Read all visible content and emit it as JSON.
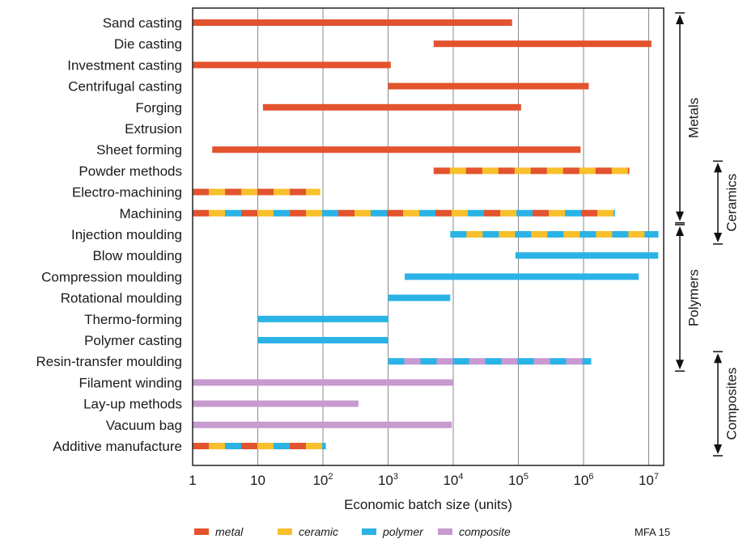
{
  "chart_data": {
    "type": "bar",
    "orientation": "horizontal",
    "x_scale": "log",
    "xlim": [
      1,
      15000000
    ],
    "xlabel": "Economic batch size (units)",
    "x_ticks": [
      {
        "value": 1,
        "base": "1",
        "exp": ""
      },
      {
        "value": 10,
        "base": "10",
        "exp": ""
      },
      {
        "value": 100,
        "base": "10",
        "exp": "2"
      },
      {
        "value": 1000,
        "base": "10",
        "exp": "3"
      },
      {
        "value": 10000,
        "base": "10",
        "exp": "4"
      },
      {
        "value": 100000,
        "base": "10",
        "exp": "5"
      },
      {
        "value": 1000000,
        "base": "10",
        "exp": "6"
      },
      {
        "value": 10000000,
        "base": "10",
        "exp": "7"
      }
    ],
    "grid": "vertical",
    "colors": {
      "metal": "#e2532e",
      "ceramic": "#f7c02c",
      "polymer": "#2bb3e6",
      "composite": "#c79ad0"
    },
    "categories": [
      {
        "label": "Sand casting",
        "min": 1,
        "max": 80000,
        "materials": [
          "metal"
        ]
      },
      {
        "label": "Die casting",
        "min": 5000,
        "max": 11000000,
        "materials": [
          "metal"
        ]
      },
      {
        "label": "Investment casting",
        "min": 1,
        "max": 1100,
        "materials": [
          "metal"
        ]
      },
      {
        "label": "Centrifugal casting",
        "min": 1000,
        "max": 1200000,
        "materials": [
          "metal"
        ]
      },
      {
        "label": "Forging",
        "min": 12,
        "max": 110000,
        "materials": [
          "metal"
        ]
      },
      {
        "label": "Extrusion",
        "min": null,
        "max": null,
        "materials": []
      },
      {
        "label": "Sheet forming",
        "min": 2,
        "max": 900000,
        "materials": [
          "metal"
        ]
      },
      {
        "label": "Powder methods",
        "min": 5000,
        "max": 5000000,
        "materials": [
          "metal",
          "ceramic"
        ]
      },
      {
        "label": "Electro-machining",
        "min": 1,
        "max": 90,
        "materials": [
          "metal",
          "ceramic"
        ]
      },
      {
        "label": "Machining",
        "min": 1,
        "max": 3000000,
        "materials": [
          "metal",
          "ceramic",
          "polymer"
        ]
      },
      {
        "label": "Injection moulding",
        "min": 9000,
        "max": 14000000,
        "materials": [
          "polymer",
          "ceramic"
        ]
      },
      {
        "label": "Blow moulding",
        "min": 90000,
        "max": 14000000,
        "materials": [
          "polymer"
        ]
      },
      {
        "label": "Compression moulding",
        "min": 1800,
        "max": 7000000,
        "materials": [
          "polymer"
        ]
      },
      {
        "label": "Rotational moulding",
        "min": 1000,
        "max": 9000,
        "materials": [
          "polymer"
        ]
      },
      {
        "label": "Thermo-forming",
        "min": 10,
        "max": 1000,
        "materials": [
          "polymer"
        ]
      },
      {
        "label": "Polymer casting",
        "min": 10,
        "max": 1000,
        "materials": [
          "polymer"
        ]
      },
      {
        "label": "Resin-transfer moulding",
        "min": 1000,
        "max": 1300000,
        "materials": [
          "polymer",
          "composite"
        ]
      },
      {
        "label": "Filament winding",
        "min": 1,
        "max": 10000,
        "materials": [
          "composite"
        ]
      },
      {
        "label": "Lay-up methods",
        "min": 1,
        "max": 350,
        "materials": [
          "composite"
        ]
      },
      {
        "label": "Vacuum bag",
        "min": 1,
        "max": 9500,
        "materials": [
          "composite"
        ]
      },
      {
        "label": "Additive manufacture",
        "min": 1,
        "max": 110,
        "materials": [
          "metal",
          "ceramic",
          "polymer"
        ]
      }
    ],
    "groups": [
      {
        "label": "Metals",
        "from_row": 0,
        "to_row": 9
      },
      {
        "label": "Ceramics",
        "from_row": 7,
        "to_row": 10
      },
      {
        "label": "Polymers",
        "from_row": 10,
        "to_row": 16
      },
      {
        "label": "Composites",
        "from_row": 16,
        "to_row": 20
      }
    ],
    "legend": {
      "placement": "bottom",
      "items": [
        {
          "key": "metal",
          "label": "metal"
        },
        {
          "key": "ceramic",
          "label": "ceramic"
        },
        {
          "key": "polymer",
          "label": "polymer"
        },
        {
          "key": "composite",
          "label": "composite"
        }
      ]
    },
    "source": "MFA 15"
  }
}
